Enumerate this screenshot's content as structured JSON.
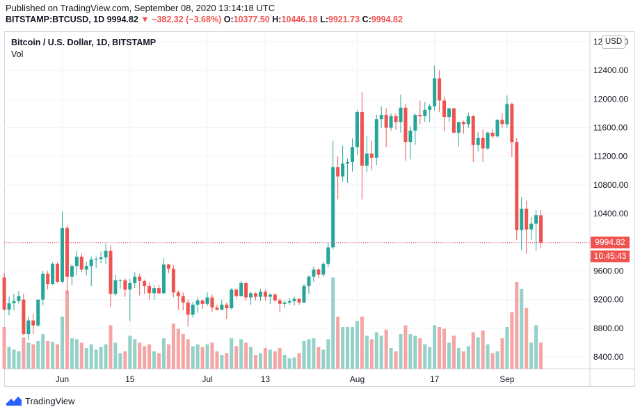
{
  "header": {
    "published": "Published on TradingView.com, September 08, 2020 13:14:18 UTC",
    "symbol": "BITSTAMP:BTCUSD, 1D",
    "last": "9994.82",
    "change": "−382.32 (−3.68%)",
    "o_label": "O:",
    "o_value": "10377.50",
    "h_label": "H:",
    "h_value": "10446.18",
    "l_label": "L:",
    "l_value": "9921.73",
    "c_label": "C:",
    "c_value": "9994.82"
  },
  "legend": {
    "title": "Bitcoin / U.S. Dollar, 1D, BITSTAMP",
    "vol": "Vol"
  },
  "currency": "USD",
  "price_tag": "9994.82",
  "countdown_tag": "10:45:43",
  "footer": {
    "brand": "TradingView"
  },
  "colors": {
    "up": "#26a69a",
    "down": "#ef5350",
    "vol_up": "#94d2c9",
    "vol_down": "#f4a5a4"
  },
  "chart_data": {
    "type": "candlestick",
    "y_ticks": [
      8400,
      8800,
      9200,
      9600,
      10000,
      10400,
      10800,
      11200,
      11600,
      12000,
      12400,
      12800
    ],
    "y_tick_labels": [
      "8400.00",
      "8800.00",
      "9200.00",
      "9600.00",
      "",
      "10400.00",
      "10800.00",
      "11200.00",
      "11600.00",
      "12000.00",
      "12400.00",
      "12800.00"
    ],
    "ylim": [
      8200,
      12950
    ],
    "last_price": 9994.82,
    "x_labels": [
      {
        "label": "Jun",
        "date": "2020-06-01"
      },
      {
        "label": "15",
        "date": "2020-06-15"
      },
      {
        "label": "Jul",
        "date": "2020-07-01"
      },
      {
        "label": "13",
        "date": "2020-07-13"
      },
      {
        "label": "Aug",
        "date": "2020-08-01"
      },
      {
        "label": "17",
        "date": "2020-08-17"
      },
      {
        "label": "Sep",
        "date": "2020-09-01"
      }
    ],
    "candles": [
      {
        "d": "2020-05-20",
        "o": 9510,
        "h": 9570,
        "l": 9050,
        "c": 9060,
        "v": 0.48
      },
      {
        "d": "2020-05-21",
        "o": 9060,
        "h": 9240,
        "l": 8980,
        "c": 9150,
        "v": 0.25
      },
      {
        "d": "2020-05-22",
        "o": 9150,
        "h": 9280,
        "l": 9050,
        "c": 9180,
        "v": 0.22
      },
      {
        "d": "2020-05-23",
        "o": 9180,
        "h": 9320,
        "l": 9140,
        "c": 9250,
        "v": 0.2
      },
      {
        "d": "2020-05-24",
        "o": 9200,
        "h": 9280,
        "l": 8700,
        "c": 8720,
        "v": 0.36
      },
      {
        "d": "2020-05-25",
        "o": 8720,
        "h": 8960,
        "l": 8640,
        "c": 8910,
        "v": 0.3
      },
      {
        "d": "2020-05-26",
        "o": 8910,
        "h": 9000,
        "l": 8720,
        "c": 8840,
        "v": 0.28
      },
      {
        "d": "2020-05-27",
        "o": 8840,
        "h": 9200,
        "l": 8820,
        "c": 9200,
        "v": 0.32
      },
      {
        "d": "2020-05-28",
        "o": 9200,
        "h": 9600,
        "l": 9120,
        "c": 9560,
        "v": 0.4
      },
      {
        "d": "2020-05-29",
        "o": 9560,
        "h": 9600,
        "l": 9340,
        "c": 9420,
        "v": 0.32
      },
      {
        "d": "2020-05-30",
        "o": 9420,
        "h": 9720,
        "l": 9400,
        "c": 9700,
        "v": 0.31
      },
      {
        "d": "2020-05-31",
        "o": 9700,
        "h": 9720,
        "l": 9430,
        "c": 9450,
        "v": 0.28
      },
      {
        "d": "2020-06-01",
        "o": 9450,
        "h": 10430,
        "l": 9430,
        "c": 10200,
        "v": 0.6
      },
      {
        "d": "2020-06-02",
        "o": 10200,
        "h": 10230,
        "l": 9280,
        "c": 9520,
        "v": 0.9
      },
      {
        "d": "2020-06-03",
        "o": 9520,
        "h": 9700,
        "l": 9400,
        "c": 9670,
        "v": 0.35
      },
      {
        "d": "2020-06-04",
        "o": 9670,
        "h": 9880,
        "l": 9540,
        "c": 9800,
        "v": 0.34
      },
      {
        "d": "2020-06-05",
        "o": 9800,
        "h": 9840,
        "l": 9590,
        "c": 9620,
        "v": 0.3
      },
      {
        "d": "2020-06-06",
        "o": 9620,
        "h": 9730,
        "l": 9540,
        "c": 9670,
        "v": 0.24
      },
      {
        "d": "2020-06-07",
        "o": 9670,
        "h": 9800,
        "l": 9390,
        "c": 9760,
        "v": 0.28
      },
      {
        "d": "2020-06-08",
        "o": 9760,
        "h": 9800,
        "l": 9640,
        "c": 9770,
        "v": 0.22
      },
      {
        "d": "2020-06-09",
        "o": 9770,
        "h": 9870,
        "l": 9710,
        "c": 9790,
        "v": 0.25
      },
      {
        "d": "2020-06-10",
        "o": 9790,
        "h": 9980,
        "l": 9700,
        "c": 9880,
        "v": 0.28
      },
      {
        "d": "2020-06-11",
        "o": 9880,
        "h": 9960,
        "l": 9100,
        "c": 9280,
        "v": 0.5
      },
      {
        "d": "2020-06-12",
        "o": 9280,
        "h": 9550,
        "l": 9250,
        "c": 9470,
        "v": 0.3
      },
      {
        "d": "2020-06-13",
        "o": 9470,
        "h": 9490,
        "l": 9350,
        "c": 9470,
        "v": 0.18
      },
      {
        "d": "2020-06-14",
        "o": 9470,
        "h": 9500,
        "l": 9240,
        "c": 9340,
        "v": 0.2
      },
      {
        "d": "2020-06-15",
        "o": 9340,
        "h": 9490,
        "l": 8900,
        "c": 9430,
        "v": 0.38
      },
      {
        "d": "2020-06-16",
        "o": 9430,
        "h": 9580,
        "l": 9360,
        "c": 9520,
        "v": 0.34
      },
      {
        "d": "2020-06-17",
        "o": 9520,
        "h": 9560,
        "l": 9260,
        "c": 9460,
        "v": 0.3
      },
      {
        "d": "2020-06-18",
        "o": 9460,
        "h": 9480,
        "l": 9280,
        "c": 9390,
        "v": 0.26
      },
      {
        "d": "2020-06-19",
        "o": 9390,
        "h": 9440,
        "l": 9200,
        "c": 9290,
        "v": 0.28
      },
      {
        "d": "2020-06-20",
        "o": 9290,
        "h": 9400,
        "l": 9200,
        "c": 9360,
        "v": 0.2
      },
      {
        "d": "2020-06-21",
        "o": 9360,
        "h": 9410,
        "l": 9270,
        "c": 9290,
        "v": 0.18
      },
      {
        "d": "2020-06-22",
        "o": 9290,
        "h": 9780,
        "l": 9280,
        "c": 9690,
        "v": 0.35
      },
      {
        "d": "2020-06-23",
        "o": 9690,
        "h": 9700,
        "l": 9570,
        "c": 9630,
        "v": 0.28
      },
      {
        "d": "2020-06-24",
        "o": 9630,
        "h": 9680,
        "l": 9230,
        "c": 9300,
        "v": 0.52
      },
      {
        "d": "2020-06-25",
        "o": 9300,
        "h": 9330,
        "l": 9060,
        "c": 9250,
        "v": 0.46
      },
      {
        "d": "2020-06-26",
        "o": 9250,
        "h": 9300,
        "l": 9050,
        "c": 9160,
        "v": 0.4
      },
      {
        "d": "2020-06-27",
        "o": 9160,
        "h": 9200,
        "l": 8830,
        "c": 8990,
        "v": 0.34
      },
      {
        "d": "2020-06-28",
        "o": 8990,
        "h": 9170,
        "l": 8950,
        "c": 9130,
        "v": 0.26
      },
      {
        "d": "2020-06-29",
        "o": 9130,
        "h": 9230,
        "l": 9020,
        "c": 9190,
        "v": 0.28
      },
      {
        "d": "2020-06-30",
        "o": 9190,
        "h": 9200,
        "l": 9070,
        "c": 9140,
        "v": 0.25
      },
      {
        "d": "2020-07-01",
        "o": 9140,
        "h": 9300,
        "l": 9110,
        "c": 9230,
        "v": 0.28
      },
      {
        "d": "2020-07-02",
        "o": 9230,
        "h": 9270,
        "l": 9030,
        "c": 9090,
        "v": 0.3
      },
      {
        "d": "2020-07-03",
        "o": 9090,
        "h": 9130,
        "l": 9050,
        "c": 9060,
        "v": 0.2
      },
      {
        "d": "2020-07-04",
        "o": 9060,
        "h": 9200,
        "l": 9050,
        "c": 9130,
        "v": 0.16
      },
      {
        "d": "2020-07-05",
        "o": 9130,
        "h": 9160,
        "l": 8930,
        "c": 9080,
        "v": 0.18
      },
      {
        "d": "2020-07-06",
        "o": 9080,
        "h": 9360,
        "l": 9060,
        "c": 9340,
        "v": 0.35
      },
      {
        "d": "2020-07-07",
        "o": 9340,
        "h": 9350,
        "l": 9220,
        "c": 9250,
        "v": 0.26
      },
      {
        "d": "2020-07-08",
        "o": 9250,
        "h": 9460,
        "l": 9240,
        "c": 9430,
        "v": 0.34
      },
      {
        "d": "2020-07-09",
        "o": 9430,
        "h": 9440,
        "l": 9180,
        "c": 9230,
        "v": 0.3
      },
      {
        "d": "2020-07-10",
        "o": 9230,
        "h": 9310,
        "l": 9130,
        "c": 9290,
        "v": 0.25
      },
      {
        "d": "2020-07-11",
        "o": 9290,
        "h": 9300,
        "l": 9190,
        "c": 9240,
        "v": 0.16
      },
      {
        "d": "2020-07-12",
        "o": 9240,
        "h": 9350,
        "l": 9180,
        "c": 9310,
        "v": 0.18
      },
      {
        "d": "2020-07-13",
        "o": 9310,
        "h": 9340,
        "l": 9190,
        "c": 9240,
        "v": 0.24
      },
      {
        "d": "2020-07-14",
        "o": 9240,
        "h": 9290,
        "l": 9140,
        "c": 9270,
        "v": 0.22
      },
      {
        "d": "2020-07-15",
        "o": 9270,
        "h": 9290,
        "l": 9170,
        "c": 9190,
        "v": 0.2
      },
      {
        "d": "2020-07-16",
        "o": 9190,
        "h": 9220,
        "l": 9020,
        "c": 9140,
        "v": 0.24
      },
      {
        "d": "2020-07-17",
        "o": 9140,
        "h": 9190,
        "l": 9090,
        "c": 9160,
        "v": 0.16
      },
      {
        "d": "2020-07-18",
        "o": 9160,
        "h": 9220,
        "l": 9130,
        "c": 9180,
        "v": 0.12
      },
      {
        "d": "2020-07-19",
        "o": 9180,
        "h": 9240,
        "l": 9120,
        "c": 9210,
        "v": 0.13
      },
      {
        "d": "2020-07-20",
        "o": 9210,
        "h": 9220,
        "l": 9130,
        "c": 9160,
        "v": 0.18
      },
      {
        "d": "2020-07-21",
        "o": 9160,
        "h": 9420,
        "l": 9150,
        "c": 9390,
        "v": 0.32
      },
      {
        "d": "2020-07-22",
        "o": 9390,
        "h": 9540,
        "l": 9280,
        "c": 9520,
        "v": 0.34
      },
      {
        "d": "2020-07-23",
        "o": 9520,
        "h": 9660,
        "l": 9450,
        "c": 9620,
        "v": 0.35
      },
      {
        "d": "2020-07-24",
        "o": 9620,
        "h": 9640,
        "l": 9500,
        "c": 9550,
        "v": 0.25
      },
      {
        "d": "2020-07-25",
        "o": 9550,
        "h": 9720,
        "l": 9520,
        "c": 9700,
        "v": 0.22
      },
      {
        "d": "2020-07-26",
        "o": 9700,
        "h": 10000,
        "l": 9650,
        "c": 9930,
        "v": 0.34
      },
      {
        "d": "2020-07-27",
        "o": 9930,
        "h": 11420,
        "l": 9900,
        "c": 11050,
        "v": 1.05
      },
      {
        "d": "2020-07-28",
        "o": 11050,
        "h": 11200,
        "l": 10600,
        "c": 10920,
        "v": 0.6
      },
      {
        "d": "2020-07-29",
        "o": 10920,
        "h": 11350,
        "l": 10850,
        "c": 11100,
        "v": 0.48
      },
      {
        "d": "2020-07-30",
        "o": 11100,
        "h": 11170,
        "l": 10830,
        "c": 11120,
        "v": 0.48
      },
      {
        "d": "2020-07-31",
        "o": 11120,
        "h": 11450,
        "l": 10990,
        "c": 11330,
        "v": 0.48
      },
      {
        "d": "2020-08-01",
        "o": 11330,
        "h": 11850,
        "l": 11220,
        "c": 11820,
        "v": 0.55
      },
      {
        "d": "2020-08-02",
        "o": 11820,
        "h": 12100,
        "l": 10600,
        "c": 11070,
        "v": 0.6
      },
      {
        "d": "2020-08-03",
        "o": 11070,
        "h": 11480,
        "l": 10980,
        "c": 11240,
        "v": 0.38
      },
      {
        "d": "2020-08-04",
        "o": 11240,
        "h": 11420,
        "l": 11010,
        "c": 11180,
        "v": 0.34
      },
      {
        "d": "2020-08-05",
        "o": 11180,
        "h": 11780,
        "l": 11080,
        "c": 11720,
        "v": 0.42
      },
      {
        "d": "2020-08-06",
        "o": 11720,
        "h": 11900,
        "l": 11600,
        "c": 11780,
        "v": 0.38
      },
      {
        "d": "2020-08-07",
        "o": 11780,
        "h": 11870,
        "l": 11330,
        "c": 11600,
        "v": 0.45
      },
      {
        "d": "2020-08-08",
        "o": 11600,
        "h": 11800,
        "l": 11560,
        "c": 11760,
        "v": 0.24
      },
      {
        "d": "2020-08-09",
        "o": 11760,
        "h": 11800,
        "l": 11570,
        "c": 11680,
        "v": 0.2
      },
      {
        "d": "2020-08-10",
        "o": 11680,
        "h": 12060,
        "l": 11530,
        "c": 11880,
        "v": 0.4
      },
      {
        "d": "2020-08-11",
        "o": 11880,
        "h": 11930,
        "l": 11140,
        "c": 11400,
        "v": 0.5
      },
      {
        "d": "2020-08-12",
        "o": 11400,
        "h": 11620,
        "l": 11160,
        "c": 11560,
        "v": 0.4
      },
      {
        "d": "2020-08-13",
        "o": 11560,
        "h": 11800,
        "l": 11360,
        "c": 11780,
        "v": 0.38
      },
      {
        "d": "2020-08-14",
        "o": 11780,
        "h": 11980,
        "l": 11650,
        "c": 11760,
        "v": 0.35
      },
      {
        "d": "2020-08-15",
        "o": 11760,
        "h": 11960,
        "l": 11680,
        "c": 11850,
        "v": 0.28
      },
      {
        "d": "2020-08-16",
        "o": 11850,
        "h": 11930,
        "l": 11680,
        "c": 11900,
        "v": 0.25
      },
      {
        "d": "2020-08-17",
        "o": 11900,
        "h": 12470,
        "l": 11840,
        "c": 12290,
        "v": 0.5
      },
      {
        "d": "2020-08-18",
        "o": 12290,
        "h": 12400,
        "l": 11820,
        "c": 11980,
        "v": 0.48
      },
      {
        "d": "2020-08-19",
        "o": 11980,
        "h": 12030,
        "l": 11550,
        "c": 11750,
        "v": 0.46
      },
      {
        "d": "2020-08-20",
        "o": 11750,
        "h": 11880,
        "l": 11680,
        "c": 11870,
        "v": 0.3
      },
      {
        "d": "2020-08-21",
        "o": 11870,
        "h": 11880,
        "l": 11520,
        "c": 11530,
        "v": 0.38
      },
      {
        "d": "2020-08-22",
        "o": 11530,
        "h": 11680,
        "l": 11340,
        "c": 11680,
        "v": 0.24
      },
      {
        "d": "2020-08-23",
        "o": 11680,
        "h": 11700,
        "l": 11520,
        "c": 11650,
        "v": 0.2
      },
      {
        "d": "2020-08-24",
        "o": 11650,
        "h": 11810,
        "l": 11600,
        "c": 11760,
        "v": 0.26
      },
      {
        "d": "2020-08-25",
        "o": 11760,
        "h": 11780,
        "l": 11120,
        "c": 11360,
        "v": 0.42
      },
      {
        "d": "2020-08-26",
        "o": 11360,
        "h": 11540,
        "l": 11270,
        "c": 11460,
        "v": 0.36
      },
      {
        "d": "2020-08-27",
        "o": 11460,
        "h": 11580,
        "l": 11120,
        "c": 11310,
        "v": 0.44
      },
      {
        "d": "2020-08-28",
        "o": 11310,
        "h": 11550,
        "l": 11290,
        "c": 11530,
        "v": 0.28
      },
      {
        "d": "2020-08-29",
        "o": 11530,
        "h": 11580,
        "l": 11450,
        "c": 11480,
        "v": 0.18
      },
      {
        "d": "2020-08-30",
        "o": 11480,
        "h": 11720,
        "l": 11460,
        "c": 11710,
        "v": 0.2
      },
      {
        "d": "2020-08-31",
        "o": 11710,
        "h": 11800,
        "l": 11600,
        "c": 11650,
        "v": 0.35
      },
      {
        "d": "2020-09-01",
        "o": 11650,
        "h": 12050,
        "l": 11600,
        "c": 11930,
        "v": 0.48
      },
      {
        "d": "2020-09-02",
        "o": 11930,
        "h": 11950,
        "l": 11190,
        "c": 11400,
        "v": 0.65
      },
      {
        "d": "2020-09-03",
        "o": 11400,
        "h": 11460,
        "l": 10030,
        "c": 10170,
        "v": 1.0
      },
      {
        "d": "2020-09-04",
        "o": 10170,
        "h": 10630,
        "l": 9890,
        "c": 10470,
        "v": 0.92
      },
      {
        "d": "2020-09-05",
        "o": 10470,
        "h": 10580,
        "l": 9840,
        "c": 10180,
        "v": 0.7
      },
      {
        "d": "2020-09-06",
        "o": 10180,
        "h": 10350,
        "l": 10030,
        "c": 10260,
        "v": 0.3
      },
      {
        "d": "2020-09-07",
        "o": 10260,
        "h": 10450,
        "l": 9880,
        "c": 10380,
        "v": 0.5
      },
      {
        "d": "2020-09-08",
        "o": 10377.5,
        "h": 10446.18,
        "l": 9921.73,
        "c": 9994.82,
        "v": 0.3
      }
    ]
  }
}
